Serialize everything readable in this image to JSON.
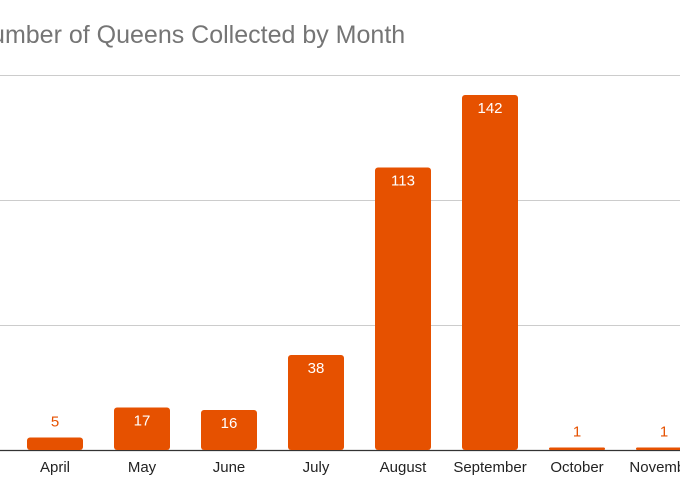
{
  "chart_data": {
    "type": "bar",
    "title": "Number of Queens Collected by Month",
    "categories": [
      "April",
      "May",
      "June",
      "July",
      "August",
      "September",
      "October",
      "November"
    ],
    "values": [
      5,
      17,
      16,
      38,
      113,
      142,
      1,
      1
    ],
    "ylim": [
      0,
      150
    ],
    "gridlines": [
      0,
      50,
      100,
      150
    ],
    "grid": true,
    "legend": "none",
    "bar_color": "#e65100",
    "label_inside_color": "#ffffff",
    "label_outside_color": "#e65100",
    "gridline_color": "#cccccc",
    "baseline_color": "#333333"
  }
}
